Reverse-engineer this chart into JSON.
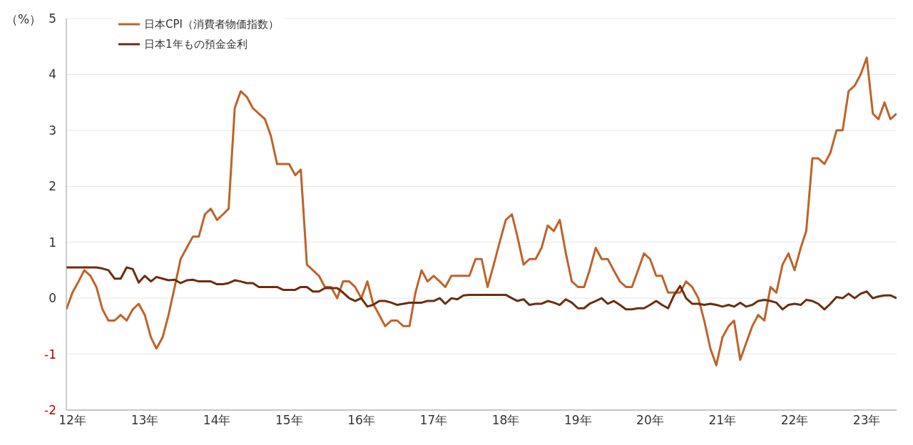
{
  "chart_data": {
    "type": "line",
    "ylabel": "（%）",
    "x": [
      "2011-12",
      "2012-01",
      "2012-02",
      "2012-03",
      "2012-04",
      "2012-05",
      "2012-06",
      "2012-07",
      "2012-08",
      "2012-09",
      "2012-10",
      "2012-11",
      "2012-12",
      "2013-01",
      "2013-02",
      "2013-03",
      "2013-04",
      "2013-05",
      "2013-06",
      "2013-07",
      "2013-08",
      "2013-09",
      "2013-10",
      "2013-11",
      "2013-12",
      "2014-01",
      "2014-02",
      "2014-03",
      "2014-04",
      "2014-05",
      "2014-06",
      "2014-07",
      "2014-08",
      "2014-09",
      "2014-10",
      "2014-11",
      "2014-12",
      "2015-01",
      "2015-02",
      "2015-03",
      "2015-04",
      "2015-05",
      "2015-06",
      "2015-07",
      "2015-08",
      "2015-09",
      "2015-10",
      "2015-11",
      "2015-12",
      "2016-01",
      "2016-02",
      "2016-03",
      "2016-04",
      "2016-05",
      "2016-06",
      "2016-07",
      "2016-08",
      "2016-09",
      "2016-10",
      "2016-11",
      "2016-12",
      "2017-01",
      "2017-02",
      "2017-03",
      "2017-04",
      "2017-05",
      "2017-06",
      "2017-07",
      "2017-08",
      "2017-09",
      "2017-10",
      "2017-11",
      "2017-12",
      "2018-01",
      "2018-02",
      "2018-03",
      "2018-04",
      "2018-05",
      "2018-06",
      "2018-07",
      "2018-08",
      "2018-09",
      "2018-10",
      "2018-11",
      "2018-12",
      "2019-01",
      "2019-02",
      "2019-03",
      "2019-04",
      "2019-05",
      "2019-06",
      "2019-07",
      "2019-08",
      "2019-09",
      "2019-10",
      "2019-11",
      "2019-12",
      "2020-01",
      "2020-02",
      "2020-03",
      "2020-04",
      "2020-05",
      "2020-06",
      "2020-07",
      "2020-08",
      "2020-09",
      "2020-10",
      "2020-11",
      "2020-12",
      "2021-01",
      "2021-02",
      "2021-03",
      "2021-04",
      "2021-05",
      "2021-06",
      "2021-07",
      "2021-08",
      "2021-09",
      "2021-10",
      "2021-11",
      "2021-12",
      "2022-01",
      "2022-02",
      "2022-03",
      "2022-04",
      "2022-05",
      "2022-06",
      "2022-07",
      "2022-08",
      "2022-09",
      "2022-10",
      "2022-11",
      "2022-12",
      "2023-01",
      "2023-02",
      "2023-03",
      "2023-04",
      "2023-05",
      "2023-06"
    ],
    "series": [
      {
        "name": "日本CPI（消費者物価指数）",
        "color": "#c0622a",
        "values": [
          -0.2,
          0.1,
          0.3,
          0.5,
          0.4,
          0.2,
          -0.2,
          -0.4,
          -0.4,
          -0.3,
          -0.4,
          -0.2,
          -0.1,
          -0.3,
          -0.7,
          -0.9,
          -0.7,
          -0.3,
          0.2,
          0.7,
          0.9,
          1.1,
          1.1,
          1.5,
          1.6,
          1.4,
          1.5,
          1.6,
          3.4,
          3.7,
          3.6,
          3.4,
          3.3,
          3.2,
          2.9,
          2.4,
          2.4,
          2.4,
          2.2,
          2.3,
          0.6,
          0.5,
          0.4,
          0.2,
          0.2,
          0.0,
          0.3,
          0.3,
          0.2,
          0.0,
          0.3,
          -0.1,
          -0.3,
          -0.5,
          -0.4,
          -0.4,
          -0.5,
          -0.5,
          0.1,
          0.5,
          0.3,
          0.4,
          0.3,
          0.2,
          0.4,
          0.4,
          0.4,
          0.4,
          0.7,
          0.7,
          0.2,
          0.6,
          1.0,
          1.4,
          1.5,
          1.1,
          0.6,
          0.7,
          0.7,
          0.9,
          1.3,
          1.2,
          1.4,
          0.8,
          0.3,
          0.2,
          0.2,
          0.5,
          0.9,
          0.7,
          0.7,
          0.5,
          0.3,
          0.2,
          0.2,
          0.5,
          0.8,
          0.7,
          0.4,
          0.4,
          0.1,
          0.1,
          0.1,
          0.3,
          0.2,
          0.0,
          -0.4,
          -0.9,
          -1.2,
          -0.7,
          -0.5,
          -0.4,
          -1.1,
          -0.8,
          -0.5,
          -0.3,
          -0.4,
          0.2,
          0.1,
          0.6,
          0.8,
          0.5,
          0.9,
          1.2,
          2.5,
          2.5,
          2.4,
          2.6,
          3.0,
          3.0,
          3.7,
          3.8,
          4.0,
          4.3,
          3.3,
          3.2,
          3.5,
          3.2,
          3.3
        ]
      },
      {
        "name": "日本1年もの預金金利",
        "color": "#6b2d0f",
        "values": [
          0.55,
          0.55,
          0.55,
          0.55,
          0.55,
          0.55,
          0.53,
          0.5,
          0.35,
          0.35,
          0.55,
          0.52,
          0.28,
          0.4,
          0.3,
          0.38,
          0.35,
          0.32,
          0.33,
          0.27,
          0.32,
          0.33,
          0.3,
          0.3,
          0.3,
          0.25,
          0.25,
          0.27,
          0.32,
          0.3,
          0.27,
          0.27,
          0.2,
          0.2,
          0.2,
          0.2,
          0.15,
          0.15,
          0.15,
          0.2,
          0.2,
          0.12,
          0.12,
          0.18,
          0.18,
          0.18,
          0.1,
          0.0,
          -0.05,
          0.0,
          -0.15,
          -0.12,
          -0.05,
          -0.05,
          -0.08,
          -0.12,
          -0.1,
          -0.08,
          -0.08,
          -0.08,
          -0.05,
          -0.05,
          0.0,
          -0.1,
          0.0,
          -0.02,
          0.05,
          0.06,
          0.06,
          0.06,
          0.06,
          0.06,
          0.06,
          0.06,
          0.0,
          -0.05,
          -0.02,
          -0.12,
          -0.1,
          -0.1,
          -0.05,
          -0.08,
          -0.12,
          -0.02,
          -0.08,
          -0.18,
          -0.18,
          -0.1,
          -0.05,
          0.0,
          -0.1,
          -0.05,
          -0.12,
          -0.2,
          -0.2,
          -0.18,
          -0.18,
          -0.12,
          -0.05,
          -0.12,
          -0.18,
          0.05,
          0.22,
          0.0,
          -0.1,
          -0.1,
          -0.12,
          -0.1,
          -0.12,
          -0.15,
          -0.12,
          -0.15,
          -0.08,
          -0.15,
          -0.12,
          -0.05,
          -0.03,
          -0.05,
          -0.08,
          -0.2,
          -0.12,
          -0.1,
          -0.12,
          -0.03,
          -0.05,
          -0.1,
          -0.2,
          -0.1,
          0.02,
          0.0,
          0.08,
          0.0,
          0.08,
          0.12,
          0.0,
          0.03,
          0.05,
          0.05,
          0.0
        ]
      }
    ],
    "xlim": [
      "2011-12",
      "2023-06"
    ],
    "xticks": [
      {
        "value": "2012-01",
        "label": "12年"
      },
      {
        "value": "2013-01",
        "label": "13年"
      },
      {
        "value": "2014-01",
        "label": "14年"
      },
      {
        "value": "2015-01",
        "label": "15年"
      },
      {
        "value": "2016-01",
        "label": "16年"
      },
      {
        "value": "2017-01",
        "label": "17年"
      },
      {
        "value": "2018-01",
        "label": "18年"
      },
      {
        "value": "2019-01",
        "label": "19年"
      },
      {
        "value": "2020-01",
        "label": "20年"
      },
      {
        "value": "2021-01",
        "label": "21年"
      },
      {
        "value": "2022-01",
        "label": "22年"
      },
      {
        "value": "2023-01",
        "label": "23年"
      }
    ],
    "ylim": [
      -2,
      5
    ],
    "yticks": [
      -2,
      -1,
      0,
      1,
      2,
      3,
      4,
      5
    ],
    "grid": "y",
    "legend": "top left",
    "marker": "none",
    "line_style": "solid"
  }
}
